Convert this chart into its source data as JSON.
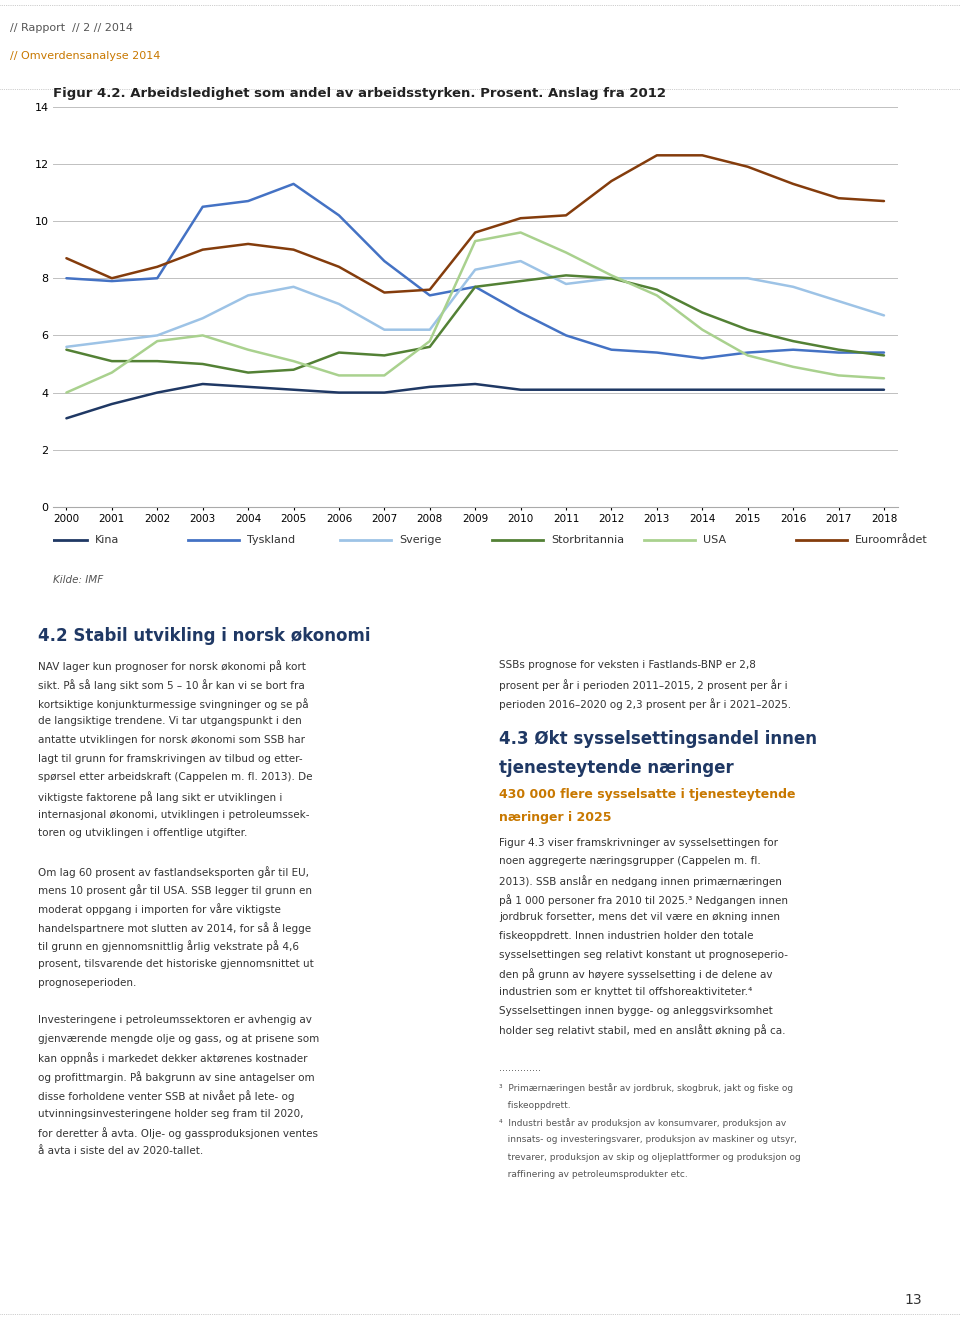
{
  "title": "Figur 4.2. Arbeidsledighet som andel av arbeidsstyrken. Prosent. Anslag fra 2012",
  "header_line1": "// Rapport  // 2 // 2014",
  "header_line2": "// Omverdensanalyse 2014",
  "source": "Kilde: IMF",
  "section_title": "4.2 Stabil utvikling i norsk økonomi",
  "section_subtitle": "NAV lager kun prognoser for norsk økonomi på kort sikt.",
  "years": [
    2000,
    2001,
    2002,
    2003,
    2004,
    2005,
    2006,
    2007,
    2008,
    2009,
    2010,
    2011,
    2012,
    2013,
    2014,
    2015,
    2016,
    2017,
    2018
  ],
  "series": {
    "Kina": {
      "color": "#1f3864",
      "values": [
        3.1,
        3.6,
        4.0,
        4.3,
        4.2,
        4.1,
        4.0,
        4.0,
        4.2,
        4.3,
        4.1,
        4.1,
        4.1,
        4.1,
        4.1,
        4.1,
        4.1,
        4.1,
        4.1
      ]
    },
    "Tyskland": {
      "color": "#4472c4",
      "values": [
        8.0,
        7.9,
        8.0,
        10.5,
        10.7,
        11.3,
        10.2,
        8.6,
        7.4,
        7.7,
        6.8,
        6.0,
        5.5,
        5.4,
        5.2,
        5.4,
        5.5,
        5.4,
        5.4
      ]
    },
    "Sverige": {
      "color": "#9dc3e6",
      "values": [
        5.6,
        5.8,
        6.0,
        6.6,
        7.4,
        7.7,
        7.1,
        6.2,
        6.2,
        8.3,
        8.6,
        7.8,
        8.0,
        8.0,
        8.0,
        8.0,
        7.7,
        7.2,
        6.7
      ]
    },
    "Storbritannia": {
      "color": "#538135",
      "values": [
        5.5,
        5.1,
        5.1,
        5.0,
        4.7,
        4.8,
        5.4,
        5.3,
        5.6,
        7.7,
        7.9,
        8.1,
        8.0,
        7.6,
        6.8,
        6.2,
        5.8,
        5.5,
        5.3
      ]
    },
    "USA": {
      "color": "#a9d18e",
      "values": [
        4.0,
        4.7,
        5.8,
        6.0,
        5.5,
        5.1,
        4.6,
        4.6,
        5.8,
        9.3,
        9.6,
        8.9,
        8.1,
        7.4,
        6.2,
        5.3,
        4.9,
        4.6,
        4.5
      ]
    },
    "Euroområdet": {
      "color": "#843c0c",
      "values": [
        8.7,
        8.0,
        8.4,
        9.0,
        9.2,
        9.0,
        8.4,
        7.5,
        7.6,
        9.6,
        10.1,
        10.2,
        11.4,
        12.3,
        12.3,
        11.9,
        11.3,
        10.8,
        10.7
      ]
    }
  },
  "ylim": [
    0,
    14
  ],
  "yticks": [
    0,
    2,
    4,
    6,
    8,
    10,
    12,
    14
  ],
  "xlim": [
    2000,
    2018
  ],
  "background_color": "#ffffff",
  "grid_color": "#c0c0c0",
  "body_text": [
    "NAV lager kun prognoser for norsk økonomi på kort",
    "sikt. På så lang sikt som 5 – 10 år kan vi se bort fra",
    "kortsiktige konjunkturmessige svingninger og se på",
    "de langsiktige trendene. Vi tar utgangspunkt i den",
    "antatte utviklingen for norsk økonomi som SSB har",
    "lagt til grunn for framskrivingen av tilbud og etter-",
    "spørsel etter arbeidskraft (Cappelen m. fl. 2013). De",
    "viktigste faktorene på lang sikt er utviklingen i",
    "internasjonal økonomi, utviklingen i petroleumssek-",
    "toren og utviklingen i offentlige utgifter.",
    "",
    "Om lag 60 prosent av fastlandseksporten går til EU,",
    "mens 10 prosent går til USA. SSB legger til grunn en",
    "moderat oppgang i importen for våre viktigste",
    "handelspartnere mot slutten av 2014, for så å legge",
    "til grunn en gjennomsnittlig årlig vekstrate på 4,6",
    "prosent, tilsvarende det historiske gjennomsnittet ut",
    "prognoseperioden.",
    "",
    "Investeringene i petroleumssektoren er avhengig av",
    "gjenværende mengde olje og gass, og at prisene som",
    "kan oppnås i markedet dekker aktørenes kostnader",
    "og profittmargin. På bakgrunn av sine antagelser om",
    "disse forholdene venter SSB at nivået på lete- og",
    "utvinningsinvesteringene holder seg fram til 2020,",
    "for deretter å avta. Olje- og gassproduksjonen ventes",
    "å avta i siste del av 2020-tallet."
  ],
  "right_text": [
    "SSBs prognose for veksten i Fastlands-BNP er 2,8",
    "prosent per år i perioden 2011–2015, 2 prosent per år i",
    "perioden 2016–2020 og 2,3 prosent per år i 2021–2025."
  ],
  "section2_title": "4.3 Økt sysselsettingsandel innen",
  "section2_subtitle": "tjenesteytende næringer",
  "section2_sub2": "430 000 flere sysselsatte i tjenesteytende",
  "section2_sub3": "næringer i 2025",
  "section2_body": [
    "Figur 4.3 viser framskrivninger av sysselsettingen for",
    "noen aggregerte næringsgrupper (Cappelen m. fl.",
    "2013). SSB anslår en nedgang innen primærnæringen",
    "på 1 000 personer fra 2010 til 2025.³ Nedgangen innen",
    "jordbruk forsetter, mens det vil være en økning innen",
    "fiskeoppdrett. Innen industrien holder den totale",
    "sysselsettingen seg relativt konstant ut prognoseperio-",
    "den på grunn av høyere sysselsetting i de delene av",
    "industrien som er knyttet til offshoreaktiviteter.⁴",
    "Sysselsettingen innen bygge- og anleggsvirksomhet",
    "holder seg relativt stabil, med en anslått økning på ca."
  ],
  "footnote3": "³  Primærnæringen består av jordbruk, skogbruk, jakt og fiske og",
  "footnote3b": "   fiskeoppdrett.",
  "footnote4": "⁴  Industri består av produksjon av konsumvarer, produksjon av",
  "footnote4b": "   innsats- og investeringsvarer, produksjon av maskiner og utsyr,",
  "footnote4c": "   trevarer, produksjon av skip og oljeplattformer og produksjon og",
  "footnote4d": "   raffinering av petroleumsprodukter etc.",
  "page_number": "13"
}
